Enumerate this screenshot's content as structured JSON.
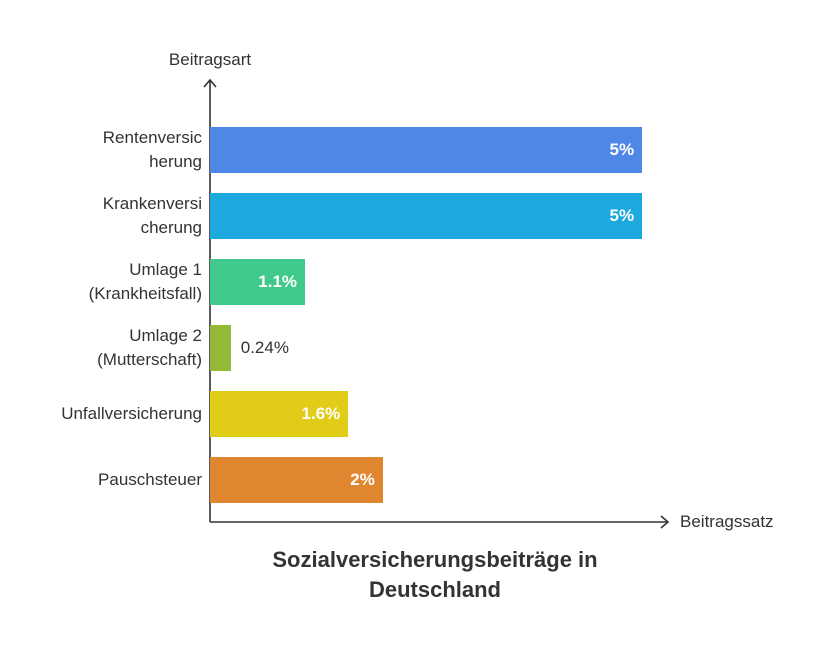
{
  "chart_data": {
    "type": "bar",
    "orientation": "horizontal",
    "title": "Sozialversicherungsbeiträge in\nDeutschland",
    "xlabel": "Beitragssatz",
    "ylabel": "Beitragsart",
    "categories": [
      "Rentenversic\nherung",
      "Krankenversi\ncherung",
      "Umlage 1\n(Krankheitsfall)",
      "Umlage 2\n(Mutterschaft)",
      "Unfallversicherung",
      "Pauschsteuer"
    ],
    "values": [
      5,
      5,
      1.1,
      0.24,
      1.6,
      2
    ],
    "value_unit": "%",
    "colors": [
      "#4E87E6",
      "#1DA9DF",
      "#3FC98A",
      "#93B937",
      "#E1CC17",
      "#E0862F"
    ],
    "xlim": [
      0,
      5.3
    ],
    "grid": false
  }
}
